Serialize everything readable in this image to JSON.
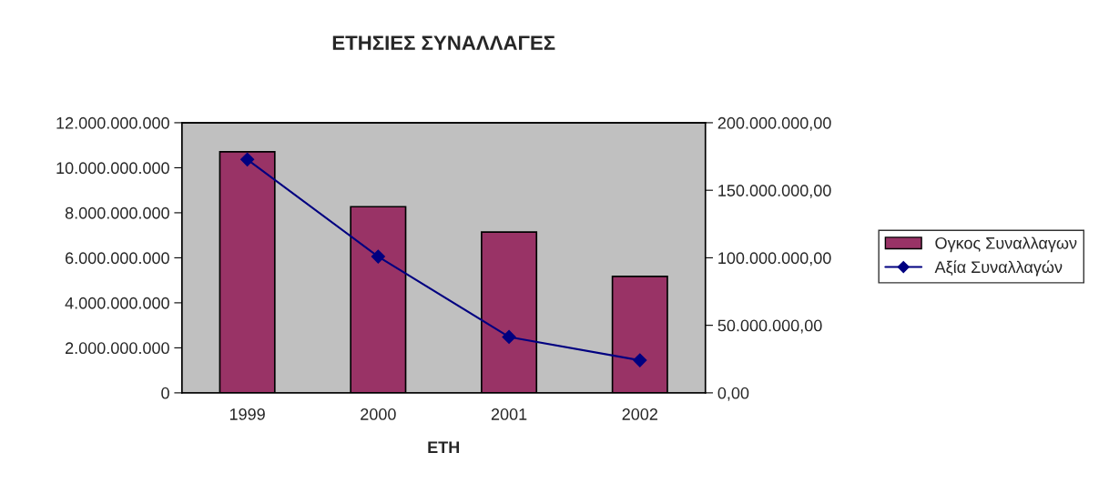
{
  "chart_data": {
    "type": "bar",
    "title": "ΕΤΗΣΙΕΣ ΣΥΝΑΛΛΑΓΕΣ",
    "xlabel": "ΕΤΗ",
    "categories": [
      "1999",
      "2000",
      "2001",
      "2002"
    ],
    "series": [
      {
        "name": "Ογκος Συναλλαγων",
        "color": "#993366",
        "values": [
          10710000000,
          8270000000,
          7140000000,
          5170000000
        ]
      },
      {
        "name": "Αξία Συναλλαγών",
        "type": "line",
        "axis": "y2",
        "color": "#000080",
        "marker": "diamond",
        "values": [
          172800000,
          100900000,
          41400000,
          24100000
        ]
      }
    ],
    "ylim": [
      0,
      12000000000
    ],
    "yticks": [
      {
        "value": 0,
        "label": "0"
      },
      {
        "value": 2000000000,
        "label": "2.000.000.000"
      },
      {
        "value": 4000000000,
        "label": "4.000.000.000"
      },
      {
        "value": 6000000000,
        "label": "6.000.000.000"
      },
      {
        "value": 8000000000,
        "label": "8.000.000.000"
      },
      {
        "value": 10000000000,
        "label": "10.000.000.000"
      },
      {
        "value": 12000000000,
        "label": "12.000.000.000"
      }
    ],
    "y2lim": [
      0,
      200000000
    ],
    "y2ticks": [
      {
        "value": 0,
        "label": "0,00"
      },
      {
        "value": 50000000,
        "label": "50.000.000,00"
      },
      {
        "value": 100000000,
        "label": "100.000.000,00"
      },
      {
        "value": 150000000,
        "label": "150.000.000,00"
      },
      {
        "value": 200000000,
        "label": "200.000.000,00"
      }
    ],
    "grid": false,
    "legend": "right"
  }
}
